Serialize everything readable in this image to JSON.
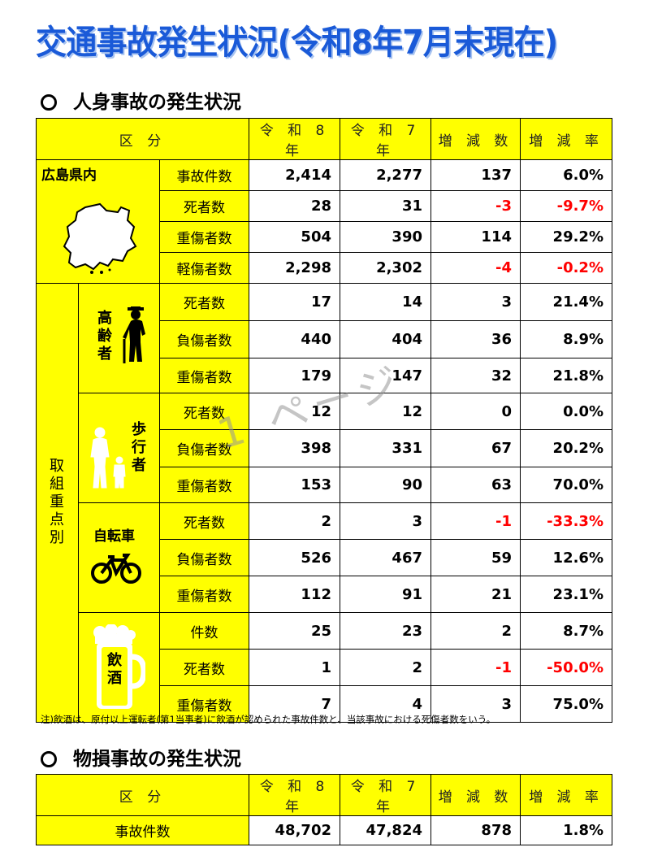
{
  "title": "交通事故発生状況(令和8年7月末現在)",
  "section1": {
    "title": "人身事故の発生状況"
  },
  "section2": {
    "title": "物損事故の発生状況"
  },
  "headers": {
    "category": "区 分",
    "col1": "令 和 8 年",
    "col2": "令 和 7 年",
    "col3": "増 減 数",
    "col4": "増 減 率"
  },
  "hiroshima": {
    "label": "広島県内",
    "rows": [
      {
        "label": "事故件数",
        "r8": "2,414",
        "r7": "2,277",
        "diff": "137",
        "rate": "6.0%"
      },
      {
        "label": "死者数",
        "r8": "28",
        "r7": "31",
        "diff": "-3",
        "rate": "-9.7%"
      },
      {
        "label": "重傷者数",
        "r8": "504",
        "r7": "390",
        "diff": "114",
        "rate": "29.2%"
      },
      {
        "label": "軽傷者数",
        "r8": "2,298",
        "r7": "2,302",
        "diff": "-4",
        "rate": "-0.2%"
      }
    ]
  },
  "focus": {
    "label": "取組重点別",
    "elderly": {
      "label": "高齢者",
      "rows": [
        {
          "label": "死者数",
          "r8": "17",
          "r7": "14",
          "diff": "3",
          "rate": "21.4%"
        },
        {
          "label": "負傷者数",
          "r8": "440",
          "r7": "404",
          "diff": "36",
          "rate": "8.9%"
        },
        {
          "label": "重傷者数",
          "r8": "179",
          "r7": "147",
          "diff": "32",
          "rate": "21.8%"
        }
      ]
    },
    "pedestrian": {
      "label": "歩行者",
      "rows": [
        {
          "label": "死者数",
          "r8": "12",
          "r7": "12",
          "diff": "0",
          "rate": "0.0%"
        },
        {
          "label": "負傷者数",
          "r8": "398",
          "r7": "331",
          "diff": "67",
          "rate": "20.2%"
        },
        {
          "label": "重傷者数",
          "r8": "153",
          "r7": "90",
          "diff": "63",
          "rate": "70.0%"
        }
      ]
    },
    "bicycle": {
      "label": "自転車",
      "rows": [
        {
          "label": "死者数",
          "r8": "2",
          "r7": "3",
          "diff": "-1",
          "rate": "-33.3%"
        },
        {
          "label": "負傷者数",
          "r8": "526",
          "r7": "467",
          "diff": "59",
          "rate": "12.6%"
        },
        {
          "label": "重傷者数",
          "r8": "112",
          "r7": "91",
          "diff": "21",
          "rate": "23.1%"
        }
      ]
    },
    "drunk": {
      "label": "飲酒",
      "rows": [
        {
          "label": "件数",
          "r8": "25",
          "r7": "23",
          "diff": "2",
          "rate": "8.7%"
        },
        {
          "label": "死者数",
          "r8": "1",
          "r7": "2",
          "diff": "-1",
          "rate": "-50.0%"
        },
        {
          "label": "重傷者数",
          "r8": "7",
          "r7": "4",
          "diff": "3",
          "rate": "75.0%"
        }
      ]
    }
  },
  "note": "注)飲酒は、原付以上運転者(第1当事者)に飲酒が認められた事故件数と、当該事故における死傷者数をいう。",
  "property": {
    "rows": [
      {
        "label": "事故件数",
        "r8": "48,702",
        "r7": "47,824",
        "diff": "878",
        "rate": "1.8%"
      }
    ]
  },
  "watermark": "1 ページ",
  "icons": [
    "hiroshima-map-icon",
    "elderly-person-icon",
    "pedestrian-icon",
    "bicycle-icon",
    "beer-mug-icon"
  ],
  "colors": {
    "title": "#1a5ad8",
    "cell": "#ffff00",
    "negative": "#ff0000"
  }
}
